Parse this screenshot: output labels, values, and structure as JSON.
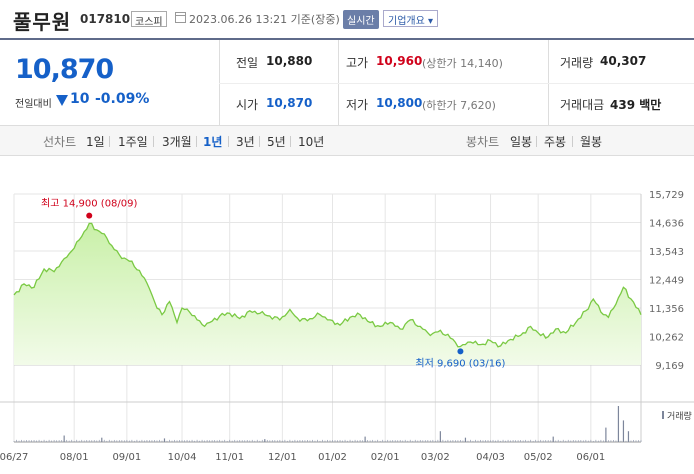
{
  "header": {
    "name": "풀무원",
    "code": "017810",
    "market": "코스피",
    "datetime": "2023.06.26 13:21 기준(장중)",
    "realtime_label": "실시간",
    "overview_label": "기업개요 ▾"
  },
  "summary": {
    "price": "10,870",
    "change_label": "전일대비",
    "change_value": "10",
    "change_pct": "-0.09%",
    "prev_close_label": "전일",
    "prev_close": "10,880",
    "open_label": "시가",
    "open": "10,870",
    "high_label": "고가",
    "high": "10,960",
    "upper_limit": "(상한가 14,140)",
    "low_label": "저가",
    "low": "10,800",
    "lower_limit": "(하한가 7,620)",
    "volume_label": "거래량",
    "volume": "40,307",
    "amount_label": "거래대금",
    "amount": "439 백만"
  },
  "tabs": {
    "line_chart_label": "선차트",
    "periods": [
      "1일",
      "1주일",
      "3개월",
      "1년",
      "3년",
      "5년",
      "10년"
    ],
    "active_period": "1년",
    "candle_chart_label": "봉차트",
    "candle_periods": [
      "일봉",
      "주봉",
      "월봉"
    ]
  },
  "colors": {
    "up": "#d0021b",
    "down": "#1560c8",
    "line": "#7ac943",
    "fill_top": "#c9f0a8",
    "fill_bottom": "#f2fbe9"
  },
  "chart_data": {
    "type": "area",
    "y_ticks": [
      "15,729",
      "14,636",
      "13,543",
      "12,449",
      "11,356",
      "10,262",
      "9,169"
    ],
    "ylim": [
      9169,
      15729
    ],
    "x_tick_labels": [
      "06/27",
      "08/01",
      "09/01",
      "10/04",
      "11/01",
      "12/01",
      "01/02",
      "02/01",
      "03/02",
      "04/03",
      "05/02",
      "06/01"
    ],
    "x_tick_index": [
      0,
      24,
      45,
      67,
      86,
      107,
      127,
      148,
      168,
      190,
      209,
      230
    ],
    "high_annotation": "최고 14,900 (08/09)",
    "high_index": 30,
    "high_value": 14900,
    "low_annotation": "최저 9,690 (03/16)",
    "low_index": 178,
    "low_value": 9690,
    "volume_label": "거래량",
    "anchors": [
      [
        0,
        11860
      ],
      [
        4,
        12280
      ],
      [
        8,
        12150
      ],
      [
        12,
        12850
      ],
      [
        16,
        12750
      ],
      [
        20,
        13250
      ],
      [
        24,
        13650
      ],
      [
        27,
        14100
      ],
      [
        30,
        14600
      ],
      [
        33,
        14350
      ],
      [
        36,
        14200
      ],
      [
        39,
        13750
      ],
      [
        42,
        13400
      ],
      [
        46,
        13150
      ],
      [
        50,
        12800
      ],
      [
        54,
        12100
      ],
      [
        57,
        11350
      ],
      [
        59,
        11100
      ],
      [
        62,
        11600
      ],
      [
        65,
        10800
      ],
      [
        67,
        11350
      ],
      [
        70,
        11200
      ],
      [
        73,
        10900
      ],
      [
        76,
        10650
      ],
      [
        79,
        10850
      ],
      [
        82,
        11050
      ],
      [
        86,
        11150
      ],
      [
        90,
        10950
      ],
      [
        94,
        11250
      ],
      [
        98,
        11150
      ],
      [
        102,
        11050
      ],
      [
        106,
        10900
      ],
      [
        110,
        11300
      ],
      [
        114,
        10850
      ],
      [
        118,
        10950
      ],
      [
        122,
        11100
      ],
      [
        126,
        10900
      ],
      [
        130,
        10700
      ],
      [
        134,
        11000
      ],
      [
        138,
        11100
      ],
      [
        142,
        10800
      ],
      [
        146,
        10650
      ],
      [
        150,
        10800
      ],
      [
        154,
        10550
      ],
      [
        158,
        10900
      ],
      [
        162,
        10650
      ],
      [
        166,
        10300
      ],
      [
        170,
        10500
      ],
      [
        174,
        10200
      ],
      [
        178,
        9880
      ],
      [
        182,
        10050
      ],
      [
        186,
        9950
      ],
      [
        190,
        10100
      ],
      [
        194,
        9900
      ],
      [
        198,
        10150
      ],
      [
        202,
        10300
      ],
      [
        206,
        10650
      ],
      [
        209,
        10400
      ],
      [
        212,
        10200
      ],
      [
        216,
        10550
      ],
      [
        220,
        10400
      ],
      [
        224,
        10800
      ],
      [
        228,
        11250
      ],
      [
        231,
        11700
      ],
      [
        234,
        11200
      ],
      [
        237,
        11000
      ],
      [
        240,
        11500
      ],
      [
        243,
        12150
      ],
      [
        246,
        11700
      ],
      [
        250,
        11100
      ]
    ],
    "volume_spikes": [
      [
        20,
        0.18
      ],
      [
        35,
        0.12
      ],
      [
        60,
        0.1
      ],
      [
        100,
        0.08
      ],
      [
        140,
        0.15
      ],
      [
        170,
        0.3
      ],
      [
        180,
        0.12
      ],
      [
        215,
        0.15
      ],
      [
        236,
        0.4
      ],
      [
        241,
        1.0
      ],
      [
        243,
        0.6
      ],
      [
        245,
        0.3
      ]
    ]
  }
}
